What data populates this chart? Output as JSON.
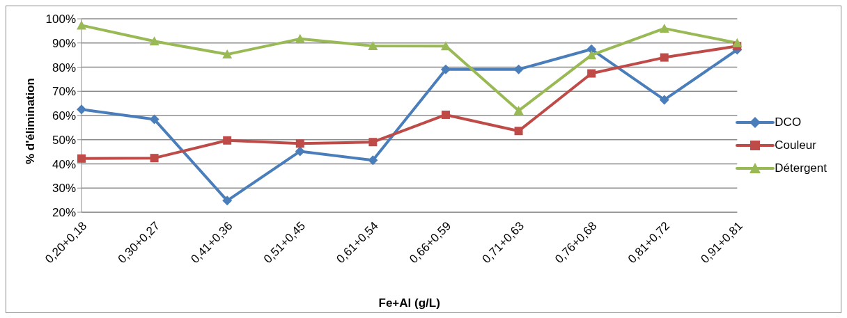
{
  "chart_data": {
    "type": "line",
    "xlabel": "Fe+Al (g/L)",
    "ylabel": "% d'élimination",
    "categories": [
      "0,20+0,18",
      "0,30+0,27",
      "0,41+0,36",
      "0,51+0,45",
      "0,61+0,54",
      "0,66+0,59",
      "0,71+0,63",
      "0,76+0,68",
      "0,81+0,72",
      "0,91+0,81"
    ],
    "series": [
      {
        "name": "DCO",
        "color": "#4a7ebb",
        "marker": "diamond",
        "values": [
          62.5,
          58.4,
          24.8,
          45.2,
          41.5,
          79.1,
          79.1,
          87.4,
          66.5,
          87.2
        ]
      },
      {
        "name": "Couleur",
        "color": "#be4b48",
        "marker": "square",
        "values": [
          42.2,
          42.4,
          49.7,
          48.4,
          49.0,
          60.3,
          53.6,
          77.4,
          84.0,
          88.7
        ]
      },
      {
        "name": "Détergent",
        "color": "#98b954",
        "marker": "triangle",
        "values": [
          97.3,
          90.7,
          85.3,
          91.7,
          88.8,
          88.7,
          62.0,
          85.0,
          96.0,
          90.0
        ]
      }
    ],
    "ylim": [
      20,
      100
    ],
    "yticks": [
      {
        "value": 20,
        "label": "20%"
      },
      {
        "value": 30,
        "label": "30%"
      },
      {
        "value": 40,
        "label": "40%"
      },
      {
        "value": 50,
        "label": "50%"
      },
      {
        "value": 60,
        "label": "60%"
      },
      {
        "value": 70,
        "label": "70%"
      },
      {
        "value": 80,
        "label": "80%"
      },
      {
        "value": 90,
        "label": "90%"
      },
      {
        "value": 100,
        "label": "100%"
      }
    ],
    "grid": "y",
    "legend": "right",
    "line_style": "solid"
  }
}
